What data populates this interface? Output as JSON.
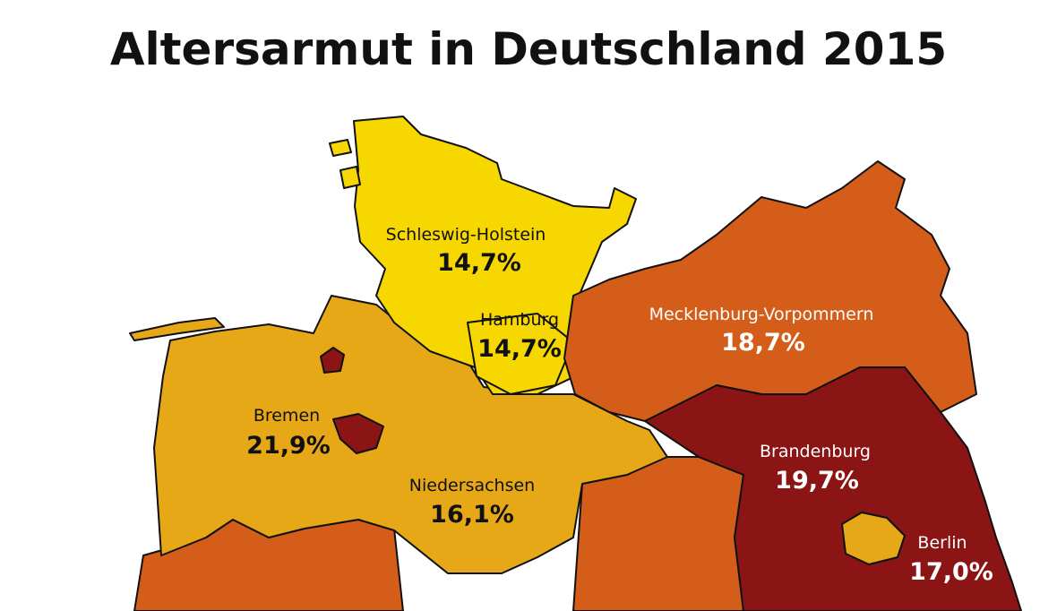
{
  "title": "Altersarmut in Deutschland 2015",
  "regions": [
    {
      "name": "Schleswig-Holstein",
      "value": "14,7%"
    },
    {
      "name": "Hamburg",
      "value": "14,7%"
    },
    {
      "name": "Mecklenburg-Vorpommern",
      "value": "18,7%"
    },
    {
      "name": "Bremen",
      "value": "21,9%"
    },
    {
      "name": "Niedersachsen",
      "value": "16,1%"
    },
    {
      "name": "Brandenburg",
      "value": "19,7%"
    },
    {
      "name": "Berlin",
      "value": "17,0%"
    }
  ]
}
